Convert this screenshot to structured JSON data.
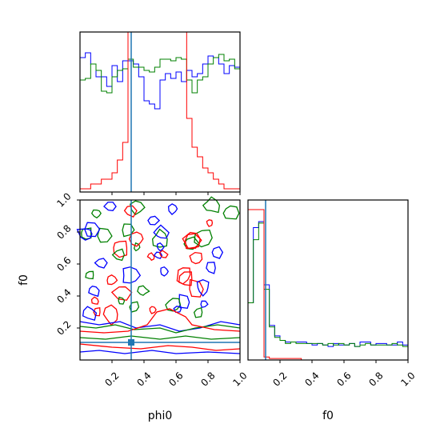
{
  "chart_data": [
    {
      "type": "histogram",
      "panel": "phi0 marginal",
      "xlim": [
        0,
        1
      ],
      "series": [
        {
          "name": "",
          "color": "#0000ff",
          "values": [
            0.84,
            0.87,
            0.8,
            0.72,
            0.72,
            0.66,
            0.79,
            0.69,
            0.82,
            0.82,
            0.8,
            0.72,
            0.57,
            0.55,
            0.52,
            0.7,
            0.74,
            0.71,
            0.75,
            0.69,
            0.76,
            0.72,
            0.74,
            0.8,
            0.85,
            0.84,
            0.8,
            0.74,
            0.79,
            0.78
          ]
        },
        {
          "name": "",
          "color": "#008000",
          "values": [
            0.7,
            0.71,
            0.8,
            0.76,
            0.63,
            0.62,
            0.72,
            0.76,
            0.77,
            0.83,
            0.78,
            0.78,
            0.76,
            0.75,
            0.78,
            0.83,
            0.83,
            0.82,
            0.84,
            0.83,
            0.7,
            0.62,
            0.7,
            0.72,
            0.8,
            0.84,
            0.86,
            0.82,
            0.83,
            0.77
          ]
        },
        {
          "name": "",
          "color": "#ff0000",
          "values": [
            0.02,
            0.02,
            0.05,
            0.05,
            0.08,
            0.08,
            0.12,
            0.2,
            0.31,
            1.0,
            1.0,
            1.0,
            1.0,
            1.0,
            1.0,
            1.0,
            1.0,
            1.0,
            1.0,
            1.0,
            0.46,
            0.28,
            0.22,
            0.15,
            0.12,
            0.08,
            0.05,
            0.02,
            0.02,
            0.02
          ]
        }
      ],
      "truth_line": 0.32
    },
    {
      "type": "histogram",
      "panel": "f0 marginal",
      "xlim": [
        0,
        1
      ],
      "xticks": [
        "0.2",
        "0.4",
        "0.6",
        "0.8",
        "1.0"
      ],
      "xlabel": "f0",
      "series": [
        {
          "name": "",
          "color": "#0000ff",
          "values": [
            0.38,
            0.88,
            0.92,
            0.5,
            0.23,
            0.16,
            0.13,
            0.12,
            0.12,
            0.12,
            0.12,
            0.11,
            0.1,
            0.11,
            0.1,
            0.09,
            0.11,
            0.1,
            0.1,
            0.11,
            0.09,
            0.12,
            0.12,
            0.1,
            0.11,
            0.11,
            0.1,
            0.1,
            0.12,
            0.1
          ]
        },
        {
          "name": "",
          "color": "#008000",
          "values": [
            0.38,
            0.8,
            0.91,
            0.47,
            0.22,
            0.15,
            0.13,
            0.11,
            0.12,
            0.11,
            0.11,
            0.11,
            0.11,
            0.11,
            0.1,
            0.11,
            0.1,
            0.11,
            0.1,
            0.11,
            0.09,
            0.1,
            0.11,
            0.1,
            0.1,
            0.1,
            0.1,
            0.11,
            0.1,
            0.09
          ]
        },
        {
          "name": "",
          "color": "#ff0000",
          "values": [
            1.0,
            1.0,
            1.0,
            0.02,
            0.01,
            0.01,
            0.01,
            0.01,
            0.01,
            0.01,
            0.0,
            0.0,
            0.0,
            0.0,
            0.0,
            0.0,
            0.0,
            0.0,
            0.0,
            0.0,
            0.0,
            0.0,
            0.0,
            0.0,
            0.0,
            0.0,
            0.0,
            0.0,
            0.0,
            0.0
          ]
        }
      ],
      "truth_line": 0.11
    },
    {
      "type": "contour",
      "panel": "phi0 vs f0",
      "xlim": [
        0,
        1
      ],
      "ylim": [
        0,
        1
      ],
      "xticks": [
        "0.2",
        "0.4",
        "0.6",
        "0.8",
        "1.0"
      ],
      "yticks": [
        "0.2",
        "0.4",
        "0.6",
        "0.8",
        "1.0"
      ],
      "xlabel": "phi0",
      "ylabel": "f0",
      "truth_point": [
        0.32,
        0.11
      ],
      "colors": [
        "#0000ff",
        "#008000",
        "#ff0000"
      ]
    }
  ]
}
